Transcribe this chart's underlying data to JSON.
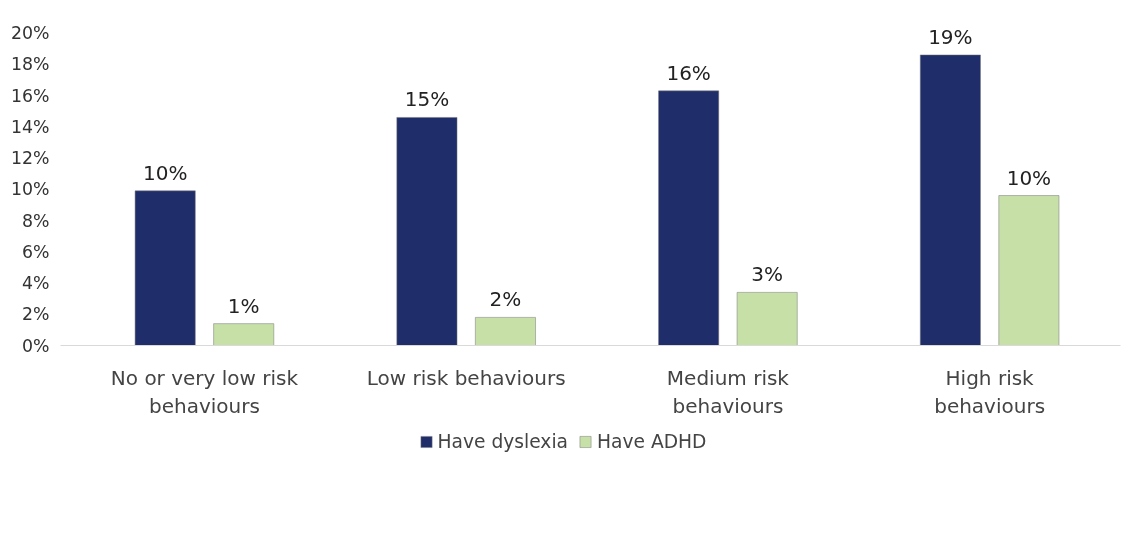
{
  "chart_data": {
    "type": "bar",
    "categories": [
      "No or very low risk behaviours",
      "Low risk behaviours",
      "Medium risk behaviours",
      "High risk behaviours"
    ],
    "series": [
      {
        "name": "Have dyslexia",
        "color": "#1f2d6b",
        "values": [
          9.9,
          14.6,
          16.3,
          18.6
        ],
        "value_labels": [
          "10%",
          "15%",
          "16%",
          "19%"
        ]
      },
      {
        "name": "Have ADHD",
        "color": "#c6e0a8",
        "values": [
          1.4,
          1.8,
          3.4,
          9.6
        ],
        "value_labels": [
          "1%",
          "2%",
          "3%",
          "10%"
        ]
      }
    ],
    "ylim": [
      0,
      20
    ],
    "yticks": [
      {
        "value": 0,
        "label": "0%"
      },
      {
        "value": 2,
        "label": "2%"
      },
      {
        "value": 4,
        "label": "4%"
      },
      {
        "value": 6,
        "label": "6%"
      },
      {
        "value": 8,
        "label": "8%"
      },
      {
        "value": 10,
        "label": "10%"
      },
      {
        "value": 12,
        "label": "12%"
      },
      {
        "value": 14,
        "label": "14%"
      },
      {
        "value": 16,
        "label": "16%"
      },
      {
        "value": 18,
        "label": "18%"
      },
      {
        "value": 20,
        "label": "20%"
      }
    ],
    "grid": false,
    "legend": "bottom"
  }
}
